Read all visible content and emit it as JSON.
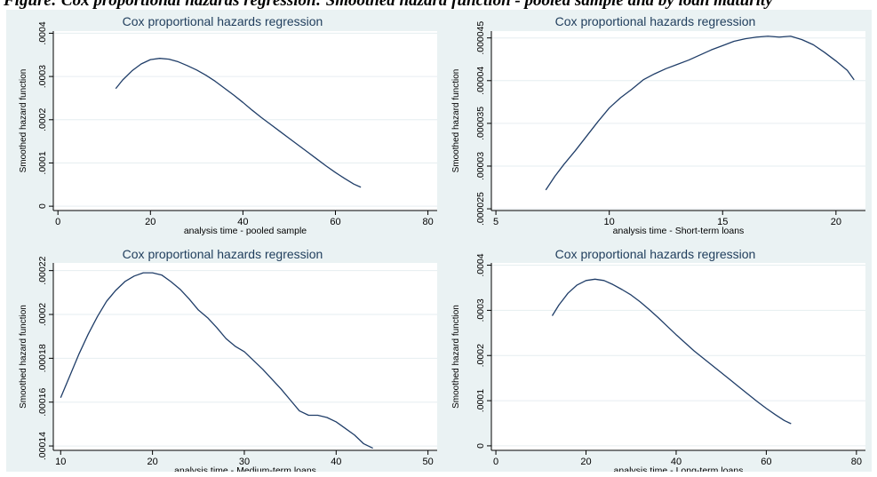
{
  "caption": "Figure: Cox proportional hazards regression: Smoothed hazard function - pooled sample and by loan maturity",
  "chart_data": [
    {
      "type": "line",
      "title": "Cox proportional hazards regression",
      "xlabel": "analysis time - pooled sample",
      "ylabel": "Smoothed hazard function",
      "xlim": [
        -1,
        82
      ],
      "ylim": [
        -1e-05,
        0.000405
      ],
      "xticks": [
        0,
        20,
        40,
        60,
        80
      ],
      "yticks": [
        0,
        0.0001,
        0.0002,
        0.0003,
        0.0004
      ],
      "ytick_labels": [
        "0",
        ".0001",
        ".0002",
        ".0003",
        ".0004"
      ],
      "grid": true,
      "series": [
        {
          "x": [
            12.5,
            14,
            16,
            18,
            20,
            22,
            24,
            26,
            28,
            30,
            32,
            34,
            36,
            38,
            40,
            42,
            44,
            46,
            48,
            50,
            52,
            54,
            56,
            58,
            60,
            62,
            64,
            65.5
          ],
          "y": [
            0.000272,
            0.000292,
            0.000313,
            0.000329,
            0.000339,
            0.000342,
            0.00034,
            0.000334,
            0.000325,
            0.000315,
            0.000303,
            0.000289,
            0.000273,
            0.000257,
            0.00024,
            0.000222,
            0.000205,
            0.000189,
            0.000173,
            0.000157,
            0.000141,
            0.000125,
            0.000109,
            9.3e-05,
            7.8e-05,
            6.4e-05,
            5.1e-05,
            4.4e-05
          ]
        }
      ]
    },
    {
      "type": "line",
      "title": "Cox proportional hazards regression",
      "xlabel": "analysis time - Short-term loans",
      "ylabel": "Smoothed hazard function",
      "xlim": [
        4.8,
        21.3
      ],
      "ylim": [
        2.48e-05,
        4.58e-05
      ],
      "xticks": [
        5,
        10,
        15,
        20
      ],
      "yticks": [
        2.5e-05,
        3e-05,
        3.5e-05,
        4e-05,
        4.5e-05
      ],
      "ytick_labels": [
        ".000025",
        ".00003",
        ".000035",
        ".00004",
        ".000045"
      ],
      "grid": true,
      "series": [
        {
          "x": [
            7.2,
            7.6,
            8,
            8.5,
            9,
            9.5,
            10,
            10.5,
            11,
            11.5,
            12,
            12.5,
            13,
            13.5,
            14,
            14.5,
            15,
            15.5,
            16,
            16.5,
            17,
            17.5,
            18,
            18.5,
            19,
            19.5,
            20,
            20.5,
            20.8
          ],
          "y": [
            2.72e-05,
            2.88e-05,
            3.02e-05,
            3.18e-05,
            3.35e-05,
            3.52e-05,
            3.68e-05,
            3.8e-05,
            3.9e-05,
            4.01e-05,
            4.08e-05,
            4.14e-05,
            4.19e-05,
            4.24e-05,
            4.3e-05,
            4.36e-05,
            4.41e-05,
            4.46e-05,
            4.49e-05,
            4.51e-05,
            4.52e-05,
            4.51e-05,
            4.52e-05,
            4.48e-05,
            4.42e-05,
            4.33e-05,
            4.23e-05,
            4.12e-05,
            4.01e-05
          ]
        }
      ]
    },
    {
      "type": "line",
      "title": "Cox proportional hazards regression",
      "xlabel": "analysis time - Medium-term loans",
      "ylabel": "Smoothed hazard function",
      "xlim": [
        9.2,
        51
      ],
      "ylim": [
        0.000138,
        0.0002235
      ],
      "xticks": [
        10,
        20,
        30,
        40,
        50
      ],
      "yticks": [
        0.00014,
        0.00016,
        0.00018,
        0.0002,
        0.00022
      ],
      "ytick_labels": [
        ".00014",
        ".00016",
        ".00018",
        ".0002",
        ".00022"
      ],
      "grid": true,
      "series": [
        {
          "x": [
            10,
            11,
            12,
            13,
            14,
            15,
            16,
            17,
            18,
            19,
            20,
            21,
            22,
            23,
            24,
            25,
            26,
            27,
            28,
            29,
            30,
            31,
            32,
            33,
            34,
            35,
            36,
            37,
            37.5,
            38,
            39,
            40,
            41,
            42,
            43,
            44
          ],
          "y": [
            0.000162,
            0.000172,
            0.000182,
            0.000191,
            0.000199,
            0.000206,
            0.000211,
            0.000215,
            0.0002175,
            0.000219,
            0.000219,
            0.000218,
            0.000215,
            0.0002115,
            0.000207,
            0.000202,
            0.0001985,
            0.000194,
            0.000189,
            0.0001855,
            0.000183,
            0.000179,
            0.000175,
            0.0001705,
            0.000166,
            0.000161,
            0.000156,
            0.000154,
            0.000154,
            0.000154,
            0.000153,
            0.000151,
            0.000148,
            0.000145,
            0.000141,
            0.000139
          ]
        }
      ]
    },
    {
      "type": "line",
      "title": "Cox proportional hazards regression",
      "xlabel": "analysis time - Long-term loans",
      "ylabel": "Smoothed hazard function",
      "xlim": [
        -1,
        82
      ],
      "ylim": [
        -1e-05,
        0.000405
      ],
      "xticks": [
        0,
        20,
        40,
        60,
        80
      ],
      "yticks": [
        0,
        0.0001,
        0.0002,
        0.0003,
        0.0004
      ],
      "ytick_labels": [
        "0",
        ".0001",
        ".0002",
        ".0003",
        ".0004"
      ],
      "grid": true,
      "series": [
        {
          "x": [
            12.5,
            14,
            16,
            18,
            20,
            22,
            24,
            26,
            28,
            30,
            32,
            34,
            36,
            38,
            40,
            42,
            44,
            46,
            48,
            50,
            52,
            54,
            56,
            58,
            60,
            62,
            64,
            65.5
          ],
          "y": [
            0.000288,
            0.000312,
            0.000338,
            0.000356,
            0.000366,
            0.000369,
            0.000366,
            0.000357,
            0.000346,
            0.000334,
            0.000319,
            0.000302,
            0.000284,
            0.000265,
            0.000246,
            0.000228,
            0.00021,
            0.000194,
            0.000178,
            0.000162,
            0.000146,
            0.00013,
            0.000114,
            9.8e-05,
            8.3e-05,
            6.9e-05,
            5.6e-05,
            4.9e-05
          ]
        }
      ]
    }
  ]
}
